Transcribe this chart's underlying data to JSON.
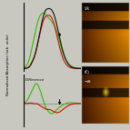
{
  "bg_color": "#c8c8c0",
  "ylabel": "Normalised Absorption (arb. units)",
  "difference_label": "Difference",
  "lw": 0.8,
  "colors": {
    "black": "#111111",
    "red": "#cc1100",
    "green": "#33bb00"
  },
  "main_xlim": [
    0,
    120
  ],
  "main_ylim": [
    -0.05,
    1.1
  ],
  "diff_ylim": [
    -0.45,
    0.55
  ],
  "diff_xlim": [
    0,
    120
  ]
}
